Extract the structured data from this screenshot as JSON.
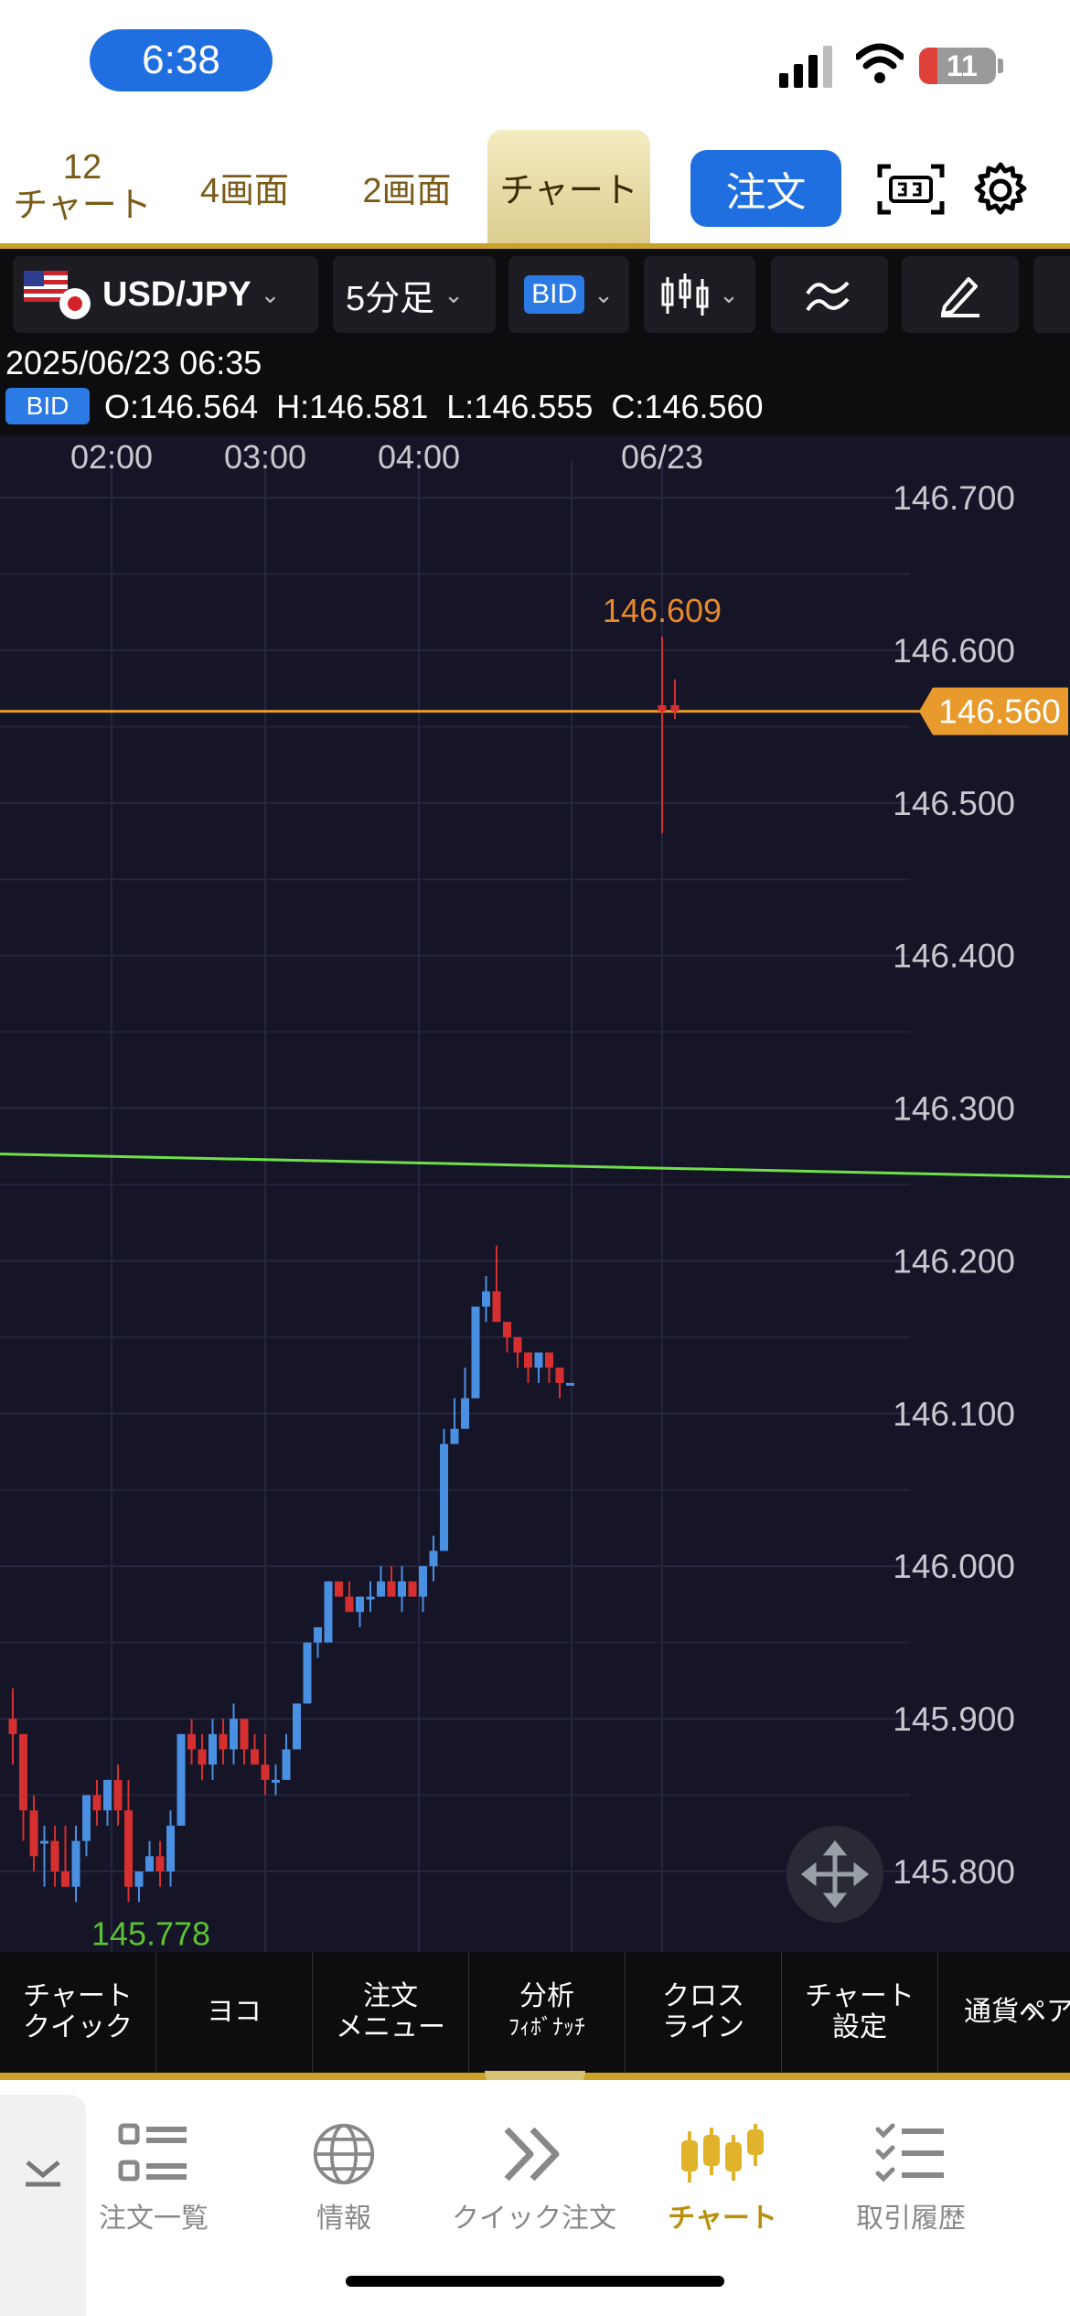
{
  "status_bar": {
    "time": "6:38",
    "battery": "11"
  },
  "top_tabs": {
    "tab_12_num": "12",
    "tab_12_label": "チャート",
    "tab_4": "4画面",
    "tab_2": "2画面",
    "tab_chart": "チャート",
    "order_button": "注文"
  },
  "toolbar": {
    "symbol": "USD/JPY",
    "timeframe": "5分足",
    "price_type": "BID"
  },
  "info": {
    "datetime": "2025/06/23 06:35",
    "price_type": "BID",
    "ohlc": "O:146.564  H:146.581  L:146.555  C:146.560"
  },
  "chart": {
    "time_labels": [
      "02:00",
      "03:00",
      "04:00",
      "06/23"
    ],
    "price_labels": [
      "146.700",
      "146.600",
      "146.500",
      "146.400",
      "146.300",
      "146.200",
      "146.100",
      "146.000",
      "145.900",
      "145.800"
    ],
    "current_price": "146.560",
    "high_label": "146.609",
    "low_label": "145.778",
    "colors": {
      "background": "#151527",
      "up": "#4a90e2",
      "down": "#d62f2f",
      "current_line": "#e89a2c",
      "trend_line": "#6fe04a",
      "high_label": "#e8892c",
      "low_label": "#5bc236"
    }
  },
  "chart_data": {
    "type": "candlestick",
    "title": "",
    "symbol": "USD/JPY",
    "timeframe": "5分足",
    "price_type": "BID",
    "x_tick_labels": [
      "02:00",
      "03:00",
      "04:00",
      "06/23"
    ],
    "ylim": [
      145.75,
      146.72
    ],
    "y_ticks": [
      146.7,
      146.6,
      146.5,
      146.4,
      146.3,
      146.2,
      146.1,
      146.0,
      145.9,
      145.8
    ],
    "last_candle": {
      "datetime": "2025/06/23 06:35",
      "open": 146.564,
      "high": 146.581,
      "low": 146.555,
      "close": 146.56
    },
    "current_price": 146.56,
    "marked_high": 146.609,
    "marked_low": 145.778,
    "trend_line": {
      "start": 146.27,
      "end": 146.255
    },
    "candles": [
      [
        145.9,
        145.92,
        145.87,
        145.89
      ],
      [
        145.89,
        145.89,
        145.82,
        145.84
      ],
      [
        145.84,
        145.85,
        145.8,
        145.81
      ],
      [
        145.82,
        145.83,
        145.79,
        145.82
      ],
      [
        145.82,
        145.83,
        145.79,
        145.8
      ],
      [
        145.8,
        145.83,
        145.79,
        145.79
      ],
      [
        145.79,
        145.83,
        145.78,
        145.82
      ],
      [
        145.82,
        145.85,
        145.81,
        145.85
      ],
      [
        145.85,
        145.86,
        145.83,
        145.84
      ],
      [
        145.84,
        145.86,
        145.83,
        145.86
      ],
      [
        145.86,
        145.87,
        145.83,
        145.84
      ],
      [
        145.84,
        145.86,
        145.78,
        145.79
      ],
      [
        145.79,
        145.8,
        145.78,
        145.8
      ],
      [
        145.8,
        145.82,
        145.8,
        145.81
      ],
      [
        145.81,
        145.82,
        145.79,
        145.8
      ],
      [
        145.8,
        145.84,
        145.79,
        145.83
      ],
      [
        145.83,
        145.89,
        145.83,
        145.89
      ],
      [
        145.89,
        145.9,
        145.87,
        145.88
      ],
      [
        145.88,
        145.89,
        145.86,
        145.87
      ],
      [
        145.87,
        145.9,
        145.86,
        145.89
      ],
      [
        145.89,
        145.9,
        145.87,
        145.88
      ],
      [
        145.88,
        145.91,
        145.87,
        145.9
      ],
      [
        145.9,
        145.9,
        145.87,
        145.88
      ],
      [
        145.88,
        145.89,
        145.87,
        145.87
      ],
      [
        145.87,
        145.89,
        145.85,
        145.86
      ],
      [
        145.86,
        145.87,
        145.85,
        145.86
      ],
      [
        145.86,
        145.89,
        145.86,
        145.88
      ],
      [
        145.88,
        145.91,
        145.88,
        145.91
      ],
      [
        145.91,
        145.95,
        145.91,
        145.95
      ],
      [
        145.95,
        145.96,
        145.94,
        145.96
      ],
      [
        145.95,
        145.99,
        145.95,
        145.99
      ],
      [
        145.99,
        145.99,
        145.98,
        145.98
      ],
      [
        145.98,
        145.99,
        145.97,
        145.97
      ],
      [
        145.97,
        145.98,
        145.96,
        145.98
      ],
      [
        145.98,
        145.99,
        145.97,
        145.98
      ],
      [
        145.98,
        146.0,
        145.98,
        145.99
      ],
      [
        145.99,
        146.0,
        145.98,
        145.98
      ],
      [
        145.98,
        146.0,
        145.97,
        145.99
      ],
      [
        145.99,
        145.99,
        145.98,
        145.98
      ],
      [
        145.98,
        146.0,
        145.97,
        146.0
      ],
      [
        146.0,
        146.02,
        145.99,
        146.01
      ],
      [
        146.01,
        146.09,
        146.01,
        146.08
      ],
      [
        146.08,
        146.11,
        146.08,
        146.09
      ],
      [
        146.09,
        146.13,
        146.09,
        146.11
      ],
      [
        146.11,
        146.17,
        146.11,
        146.17
      ],
      [
        146.17,
        146.19,
        146.16,
        146.18
      ],
      [
        146.18,
        146.21,
        146.16,
        146.16
      ],
      [
        146.16,
        146.16,
        146.14,
        146.15
      ],
      [
        146.15,
        146.15,
        146.13,
        146.14
      ],
      [
        146.14,
        146.14,
        146.12,
        146.13
      ],
      [
        146.13,
        146.14,
        146.12,
        146.14
      ],
      [
        146.14,
        146.14,
        146.12,
        146.13
      ],
      [
        146.13,
        146.13,
        146.11,
        146.12
      ],
      [
        146.12,
        146.12,
        146.12,
        146.12
      ],
      [
        146.564,
        146.609,
        146.48,
        146.56
      ],
      [
        146.564,
        146.581,
        146.555,
        146.56
      ]
    ]
  },
  "bottom_menu": [
    {
      "line1": "チャート",
      "line2": "クイック"
    },
    {
      "line1": "ヨコ",
      "line2": ""
    },
    {
      "line1": "注文",
      "line2": "メニュー"
    },
    {
      "line1": "分析",
      "line2": "ﾌｨﾎﾞﾅｯﾁ"
    },
    {
      "line1": "クロス",
      "line2": "ライン"
    },
    {
      "line1": "チャート",
      "line2": "設定"
    },
    {
      "line1": "通貨ペア",
      "line2": ""
    }
  ],
  "bottom_nav": [
    {
      "label": "注文一覧",
      "icon": "order-list-icon"
    },
    {
      "label": "情報",
      "icon": "globe-icon"
    },
    {
      "label": "クイック注文",
      "icon": "double-chevron-icon"
    },
    {
      "label": "チャート",
      "icon": "candlestick-icon",
      "active": true
    },
    {
      "label": "取引履歴",
      "icon": "checklist-icon"
    }
  ]
}
